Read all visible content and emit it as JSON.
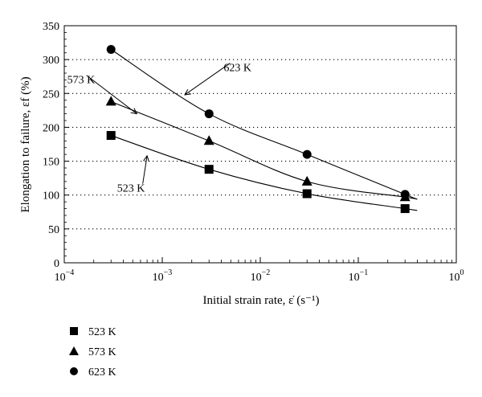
{
  "chart_data": {
    "type": "scatter",
    "x_scale": "log",
    "xlim": [
      0.0001,
      1
    ],
    "ylim": [
      0,
      350
    ],
    "xlabel": "Initial strain rate, ε̇ (s⁻¹)",
    "ylabel": "Elongation to failure, εf (%)",
    "x_tick_labels": [
      {
        "value": 0.0001,
        "base": "10",
        "exp": "−4"
      },
      {
        "value": 0.001,
        "base": "10",
        "exp": "−3"
      },
      {
        "value": 0.01,
        "base": "10",
        "exp": "−2"
      },
      {
        "value": 0.1,
        "base": "10",
        "exp": "−1"
      },
      {
        "value": 1,
        "base": "10",
        "exp": "0"
      }
    ],
    "y_ticks": [
      0,
      50,
      100,
      150,
      200,
      250,
      300,
      350
    ],
    "grid": "dotted horizontal",
    "legend_position": "below plot, left",
    "series": [
      {
        "name": "523 K",
        "marker": "square",
        "x": [
          0.0003,
          0.003,
          0.03,
          0.3
        ],
        "y": [
          188,
          138,
          102,
          80
        ]
      },
      {
        "name": "573 K",
        "marker": "triangle",
        "x": [
          0.0003,
          0.003,
          0.03,
          0.3
        ],
        "y": [
          238,
          180,
          120,
          97
        ]
      },
      {
        "name": "623 K",
        "marker": "circle",
        "x": [
          0.0003,
          0.003,
          0.03,
          0.3
        ],
        "y": [
          315,
          220,
          160,
          101
        ]
      }
    ],
    "annotations": [
      {
        "series": "523 K",
        "text": "523 K"
      },
      {
        "series": "573 K",
        "text": "573 K"
      },
      {
        "series": "623 K",
        "text": "623 K"
      }
    ]
  }
}
